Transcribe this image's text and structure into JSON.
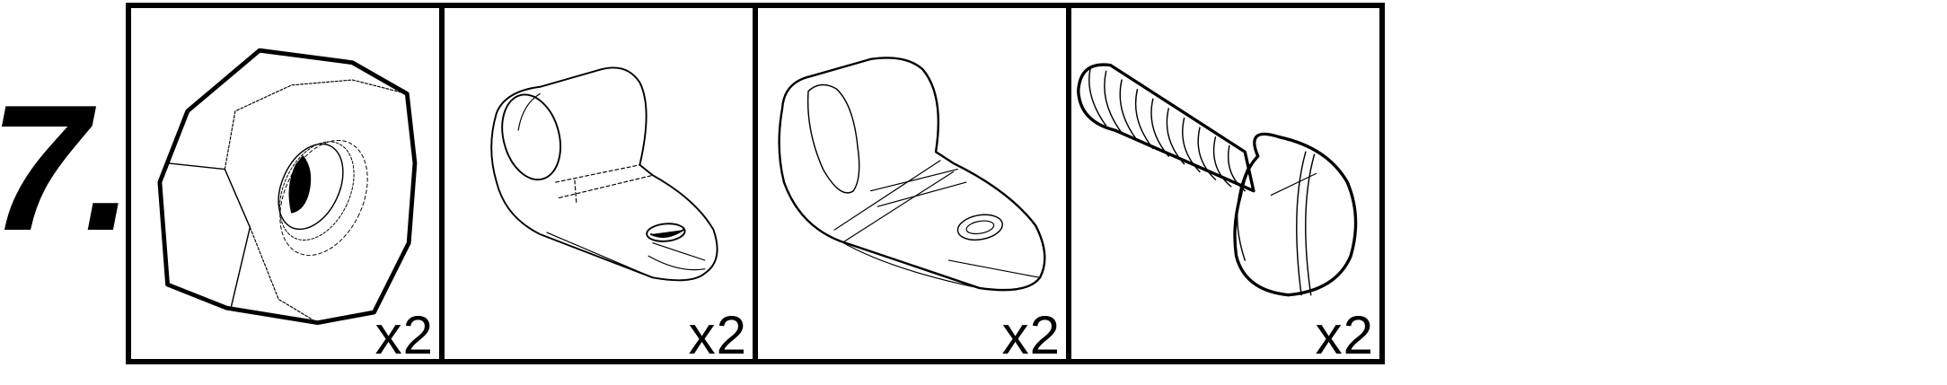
{
  "step": {
    "number_label": "7."
  },
  "parts": [
    {
      "icon": "hex-nut-icon",
      "quantity_label": "x2"
    },
    {
      "icon": "cable-clamp-icon",
      "quantity_label": "x2"
    },
    {
      "icon": "cable-clamp-icon",
      "quantity_label": "x2"
    },
    {
      "icon": "slotted-screw-icon",
      "quantity_label": "x2"
    }
  ]
}
